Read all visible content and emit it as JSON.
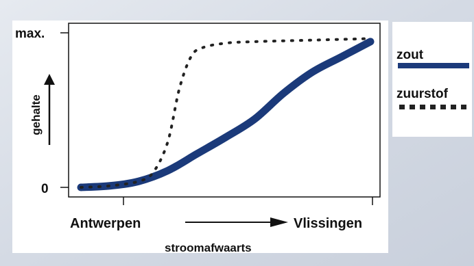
{
  "chart_data": {
    "type": "line",
    "title": "",
    "ylabel": "gehalte",
    "xlabel": "stroomafwaarts",
    "y_ticks": [
      "max.",
      "0"
    ],
    "x_ticks": [
      "Antwerpen",
      "Vlissingen"
    ],
    "ylim": [
      0,
      1
    ],
    "xlim": [
      0,
      1
    ],
    "grid": false,
    "legend_position": "right",
    "series": [
      {
        "name": "zout",
        "color": "#1b3a7a",
        "style": "solid-thick",
        "points": [
          [
            0.0,
            0.0
          ],
          [
            0.1,
            0.01
          ],
          [
            0.2,
            0.04
          ],
          [
            0.3,
            0.11
          ],
          [
            0.4,
            0.22
          ],
          [
            0.5,
            0.33
          ],
          [
            0.6,
            0.45
          ],
          [
            0.7,
            0.62
          ],
          [
            0.8,
            0.76
          ],
          [
            0.9,
            0.86
          ],
          [
            1.0,
            0.96
          ]
        ]
      },
      {
        "name": "zuurstof",
        "color": "#222222",
        "style": "dotted",
        "points": [
          [
            0.0,
            0.0
          ],
          [
            0.1,
            0.01
          ],
          [
            0.2,
            0.04
          ],
          [
            0.25,
            0.1
          ],
          [
            0.3,
            0.3
          ],
          [
            0.34,
            0.65
          ],
          [
            0.38,
            0.86
          ],
          [
            0.42,
            0.92
          ],
          [
            0.5,
            0.95
          ],
          [
            0.6,
            0.96
          ],
          [
            0.8,
            0.97
          ],
          [
            1.0,
            0.98
          ]
        ]
      }
    ]
  }
}
